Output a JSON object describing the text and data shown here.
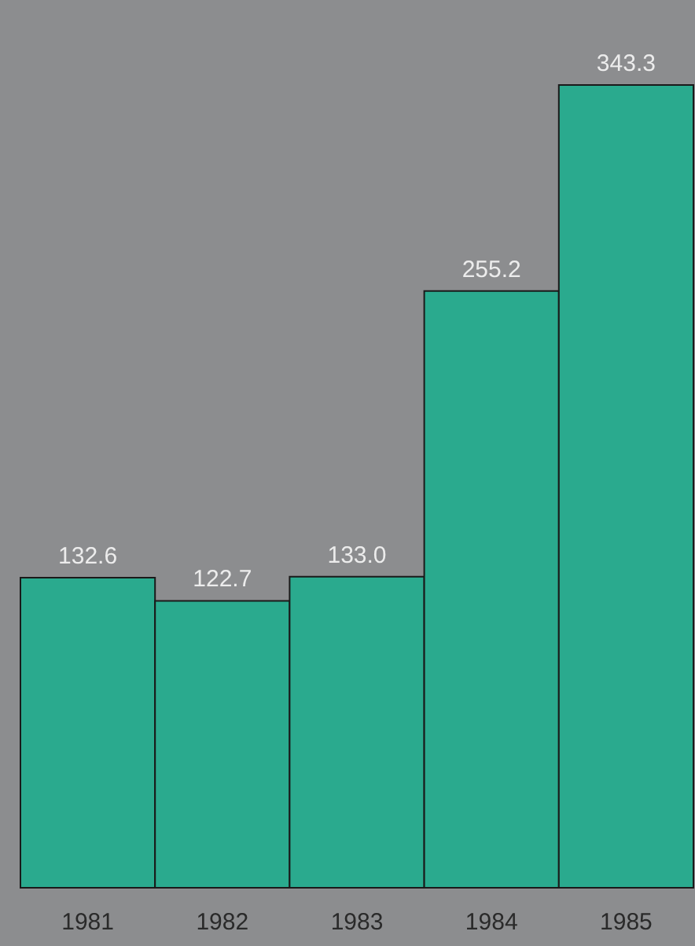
{
  "chart_data": {
    "type": "bar",
    "categories": [
      "1981",
      "1982",
      "1983",
      "1984",
      "1985"
    ],
    "values": [
      132.6,
      122.7,
      133.0,
      255.2,
      343.3
    ],
    "color": "#2aaa8e",
    "value_labels": [
      "132.6",
      "122.7",
      "133.0",
      "255.2",
      "343.3"
    ]
  }
}
